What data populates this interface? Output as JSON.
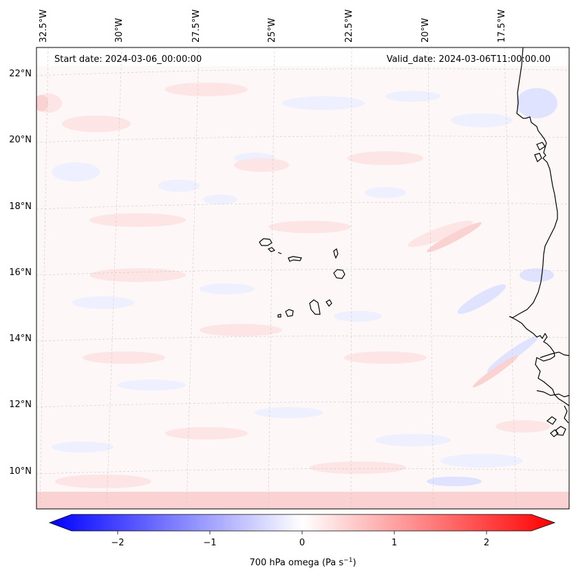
{
  "header": {
    "start_date": "Start date: 2024-03-06_00:00:00",
    "valid_date": "Valid_date: 2024-03-06T11:00:00.00"
  },
  "map": {
    "variable": "700 hPa omega",
    "lon_labels": [
      "32.5°W",
      "30°W",
      "27.5°W",
      "25°W",
      "22.5°W",
      "20°W",
      "17.5°W"
    ],
    "lat_labels": [
      "22°N",
      "20°N",
      "18°N",
      "16°N",
      "14°N",
      "12°N",
      "10°N"
    ],
    "colors": {
      "negative": "#0000ff",
      "zero": "#ffffff",
      "positive": "#ff0000",
      "coastline": "#000000",
      "gridline": "#b0b0b0"
    }
  },
  "colorbar": {
    "label_prefix": "700 hPa omega (Pa s",
    "label_sup": "−1",
    "label_suffix": ")",
    "range": [
      -2.75,
      2.75
    ],
    "ticks": [
      {
        "value": -2,
        "label": "−2"
      },
      {
        "value": -1,
        "label": "−1"
      },
      {
        "value": 0,
        "label": "0"
      },
      {
        "value": 1,
        "label": "1"
      },
      {
        "value": 2,
        "label": "2"
      }
    ]
  }
}
